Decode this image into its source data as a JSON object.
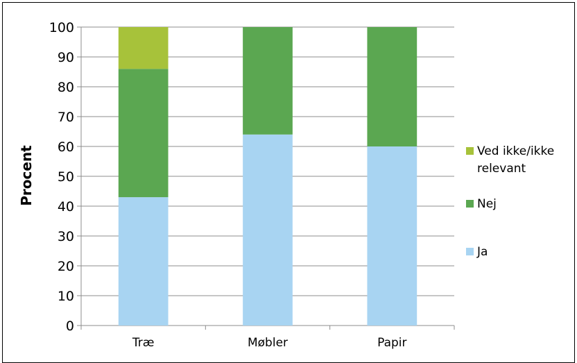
{
  "chart_data": {
    "type": "bar",
    "stacked": true,
    "categories": [
      "Træ",
      "Møbler",
      "Papir"
    ],
    "series": [
      {
        "name": "Ja",
        "values": [
          43,
          64,
          60
        ],
        "color": "#a8d4f2"
      },
      {
        "name": "Nej",
        "values": [
          43,
          36,
          40
        ],
        "color": "#5ba751"
      },
      {
        "name": "Ved ikke/ikke relevant",
        "values": [
          14,
          0,
          0
        ],
        "color": "#a7c23a"
      }
    ],
    "legend_lines": {
      "Ja": [
        "Ja"
      ],
      "Nej": [
        "Nej"
      ],
      "Ved ikke/ikke relevant": [
        "Ved ikke/ikke",
        "relevant"
      ]
    },
    "title": "",
    "xlabel": "",
    "ylabel": "Procent",
    "ylim": [
      0,
      100
    ],
    "yticks": [
      0,
      10,
      20,
      30,
      40,
      50,
      60,
      70,
      80,
      90,
      100
    ],
    "grid": true,
    "legend_position": "right"
  }
}
